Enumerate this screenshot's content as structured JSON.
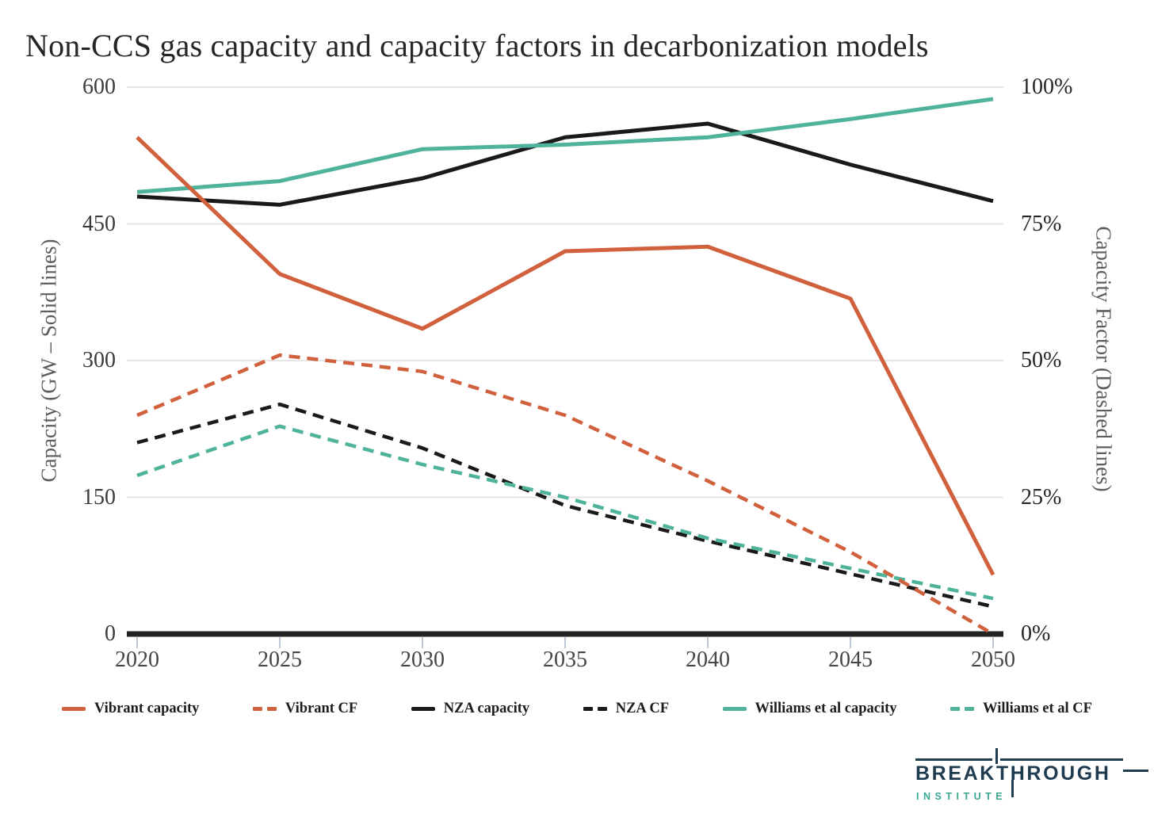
{
  "chart_data": {
    "type": "line",
    "title": "Non-CCS gas capacity and capacity factors in decarbonization models",
    "x": [
      2020,
      2025,
      2030,
      2035,
      2040,
      2045,
      2050
    ],
    "x_tick_labels": [
      "2020",
      "2025",
      "2030",
      "2035",
      "2040",
      "2045",
      "2050"
    ],
    "left_axis": {
      "label": "Capacity (GW – Solid lines)",
      "tick_labels": [
        "600",
        "450",
        "300",
        "150",
        "0"
      ],
      "tick_values": [
        600,
        450,
        300,
        150,
        0
      ],
      "range": [
        0,
        600
      ]
    },
    "right_axis": {
      "label": "Capacity Factor (Dashed lines)",
      "tick_labels": [
        "100%",
        "75%",
        "50%",
        "25%",
        "0%"
      ],
      "tick_values": [
        100,
        75,
        50,
        25,
        0
      ],
      "range": [
        0,
        100
      ]
    },
    "grid": true,
    "legend_position": "bottom",
    "colors": {
      "vibrant": "#D1603D",
      "nza": "#1A1A1A",
      "williams": "#4FB39A",
      "gridline": "#E5E5E5",
      "axis_bar": "#242424",
      "tick_mark": "#BCC8D6"
    },
    "series": [
      {
        "name": "Vibrant capacity",
        "axis": "left",
        "style": "solid",
        "color": "#D1603D",
        "values": [
          545,
          395,
          335,
          420,
          425,
          368,
          65
        ]
      },
      {
        "name": "Vibrant CF",
        "axis": "right",
        "style": "dashed",
        "color": "#D1603D",
        "values": [
          40,
          51,
          48,
          40,
          28,
          15,
          0
        ]
      },
      {
        "name": "NZA capacity",
        "axis": "left",
        "style": "solid",
        "color": "#1A1A1A",
        "values": [
          480,
          471,
          500,
          545,
          560,
          515,
          475
        ]
      },
      {
        "name": "NZA CF",
        "axis": "right",
        "style": "dashed",
        "color": "#1A1A1A",
        "values": [
          35,
          42,
          34,
          23.5,
          17,
          11,
          5
        ]
      },
      {
        "name": "Williams et al capacity",
        "axis": "left",
        "style": "solid",
        "color": "#4FB39A",
        "values": [
          485,
          497,
          532,
          537,
          545,
          565,
          587
        ]
      },
      {
        "name": "Williams et al CF",
        "axis": "right",
        "style": "dashed",
        "color": "#4FB39A",
        "values": [
          29,
          38,
          31,
          25,
          17.5,
          12,
          6.5
        ]
      }
    ]
  },
  "logo": {
    "name": "BREAKTHROUGH",
    "subtitle": "INSTITUTE"
  }
}
